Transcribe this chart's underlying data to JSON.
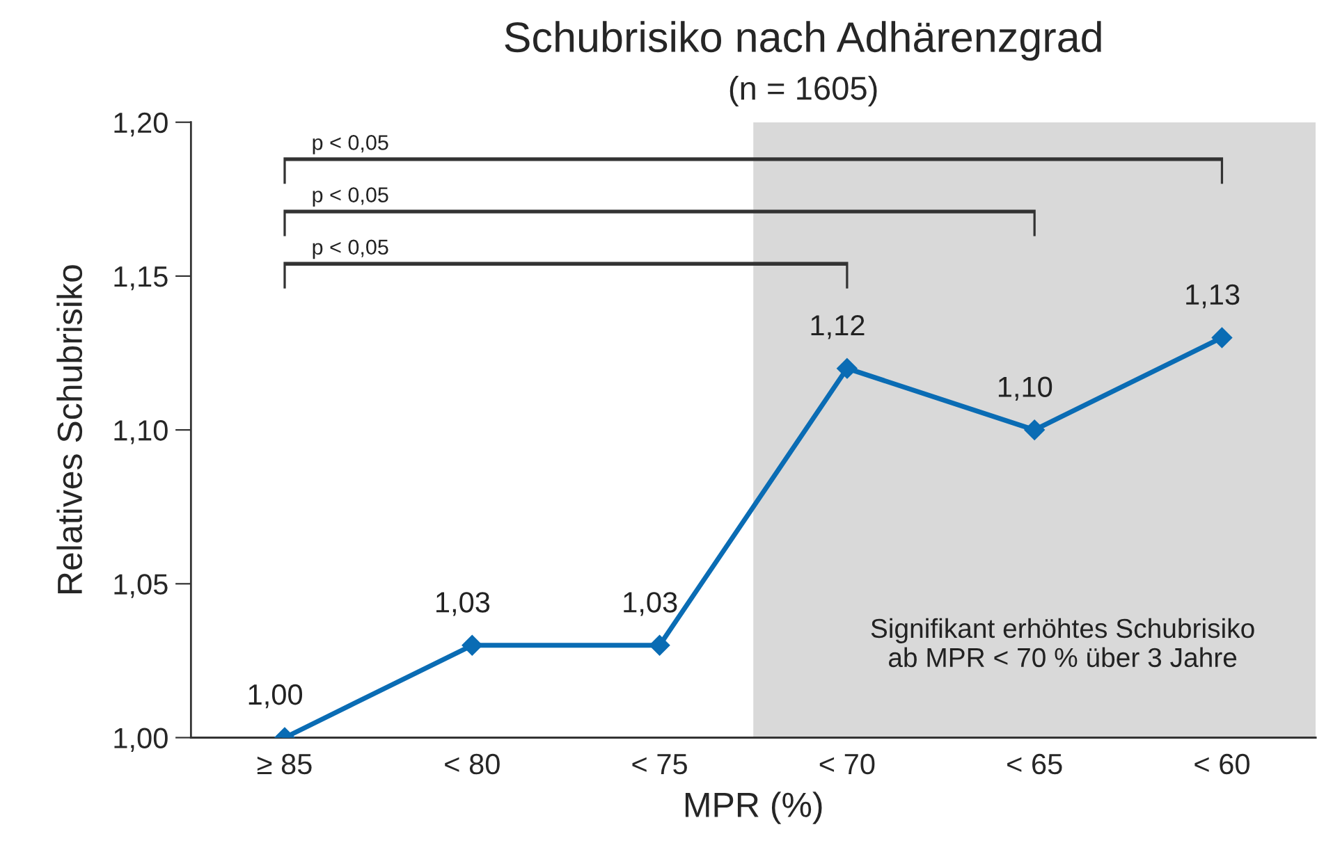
{
  "chart_data": {
    "type": "line",
    "title": "Schubrisiko nach Adhärenzgrad",
    "subtitle": "(n = 1605)",
    "xlabel": "MPR (%)",
    "ylabel": "Relatives Schubrisiko",
    "categories": [
      "≥ 85",
      "< 80",
      "< 75",
      "< 70",
      "< 65",
      "< 60"
    ],
    "series": [
      {
        "color": "#0a6cb4",
        "values": [
          1.0,
          1.03,
          1.03,
          1.12,
          1.1,
          1.13
        ],
        "value_labels": [
          "1,00",
          "1,03",
          "1,03",
          "1,12",
          "1,10",
          "1,13"
        ]
      }
    ],
    "ylim": [
      1.0,
      1.2
    ],
    "yticks": [
      {
        "value": 1.0,
        "label": "1,00"
      },
      {
        "value": 1.05,
        "label": "1,05"
      },
      {
        "value": 1.1,
        "label": "1,10"
      },
      {
        "value": 1.15,
        "label": "1,15"
      },
      {
        "value": 1.2,
        "label": "1,20"
      }
    ],
    "bands": [
      {
        "axis": "x",
        "from": "< 70",
        "to": "< 60",
        "label": "Signifikant erhöhtes Schubrisiko\nab MPR < 70 % über 3 Jahre",
        "color": "#d9d9d9"
      }
    ],
    "annotations": [
      "p < 0,05",
      "p < 0,05",
      "p < 0,05"
    ],
    "marker": "diamond",
    "line_style": "solid",
    "grid": false
  }
}
